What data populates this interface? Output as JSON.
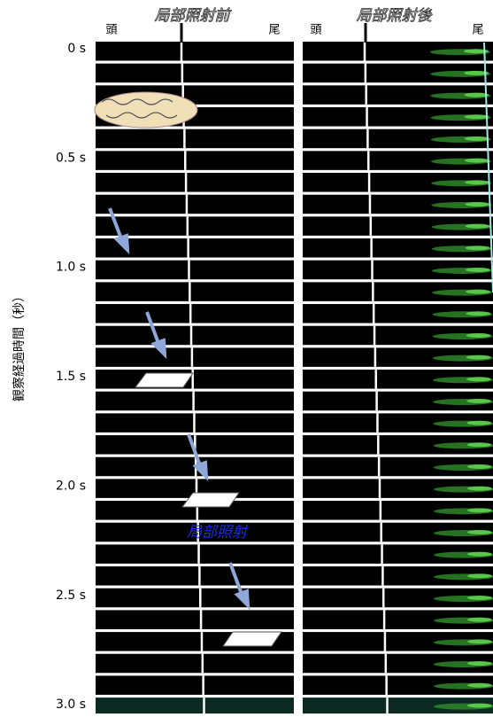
{
  "header": {
    "before_label": "局部照射前",
    "after_label": "局部照射後",
    "before_head": "頭",
    "before_tail": "尾",
    "after_head": "頭",
    "after_tail": "尾"
  },
  "y_axis": {
    "title": "観察経過時間（秒）",
    "tick_labels": [
      "0 s",
      "0.5 s",
      "1.0 s",
      "1.5 s",
      "2.0 s",
      "2.5 s",
      "3.0 s"
    ]
  },
  "annotation": "局部照射"
}
